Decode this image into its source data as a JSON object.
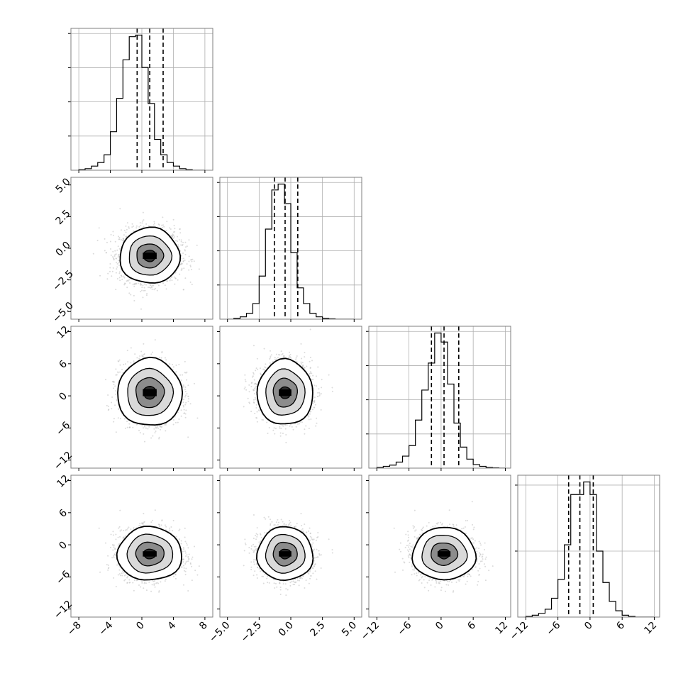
{
  "chart_data": {
    "type": "corner",
    "title": "",
    "parameters": 4,
    "colors": {
      "hist": "#000000",
      "points": "#bdbdbd",
      "grid": "#b0b0b0",
      "axes": "#7f7f7f"
    },
    "grid": true,
    "diagonal_histograms": [
      {
        "param": 0,
        "xlim": [
          -9,
          9
        ],
        "bin_edges": [
          -8,
          -7.2,
          -6.4,
          -5.6,
          -4.8,
          -4,
          -3.2,
          -2.4,
          -1.6,
          -0.8,
          0,
          0.8,
          1.6,
          2.4,
          3.2,
          4,
          4.8,
          5.6,
          6.4,
          7.2,
          8
        ],
        "counts": [
          1,
          3,
          8,
          15,
          30,
          75,
          140,
          215,
          260,
          263,
          200,
          130,
          60,
          30,
          15,
          8,
          3,
          1,
          0,
          0
        ],
        "quantiles": [
          -0.6,
          1.0,
          2.7
        ],
        "yticks": 4
      },
      {
        "param": 1,
        "xlim": [
          -5.6,
          5.6
        ],
        "bin_edges": [
          -5,
          -4.5,
          -4,
          -3.5,
          -3,
          -2.5,
          -2,
          -1.5,
          -1,
          -0.5,
          0,
          0.5,
          1,
          1.5,
          2,
          2.5,
          3,
          3.5,
          4,
          4.5,
          5
        ],
        "counts": [
          0,
          2,
          6,
          15,
          40,
          110,
          230,
          330,
          345,
          295,
          170,
          80,
          40,
          15,
          6,
          2,
          1,
          0,
          0,
          0
        ],
        "quantiles": [
          -1.3,
          -0.45,
          0.55
        ],
        "yticks": 4
      },
      {
        "param": 2,
        "xlim": [
          -13.5,
          13
        ],
        "bin_edges": [
          -12,
          -10.8,
          -9.6,
          -8.4,
          -7.2,
          -6,
          -4.8,
          -3.6,
          -2.4,
          -1.2,
          0,
          1.2,
          2.4,
          3.6,
          4.8,
          6,
          7.2,
          8.4,
          9.6,
          10.8,
          12
        ],
        "counts": [
          2,
          6,
          10,
          20,
          40,
          75,
          160,
          260,
          350,
          450,
          420,
          280,
          150,
          70,
          30,
          12,
          6,
          2,
          1,
          0
        ],
        "quantiles": [
          -1.8,
          0.55,
          3.3
        ],
        "yticks": 4
      },
      {
        "param": 3,
        "xlim": [
          -13.5,
          13
        ],
        "bin_edges": [
          -12,
          -10.8,
          -9.6,
          -8.4,
          -7.2,
          -6,
          -4.8,
          -3.6,
          -2.4,
          -1.2,
          0,
          1.2,
          2.4,
          3.6,
          4.8,
          6,
          7.2,
          8.4,
          9.6,
          10.8,
          12
        ],
        "counts": [
          2,
          6,
          12,
          25,
          60,
          120,
          230,
          390,
          390,
          430,
          390,
          210,
          110,
          50,
          20,
          6,
          2,
          0,
          0,
          0
        ],
        "quantiles": [
          -4.0,
          -1.9,
          0.6
        ],
        "yticks": 2
      }
    ],
    "joint_panels": [
      {
        "x_param": 0,
        "y_param": 1,
        "center": [
          1.0,
          -0.6
        ],
        "spread": [
          2.0,
          1.1
        ],
        "contour_half_widths": [
          [
            3.8,
            2.2
          ],
          [
            2.7,
            1.55
          ],
          [
            1.7,
            0.95
          ],
          [
            0.8,
            0.45
          ]
        ]
      },
      {
        "x_param": 0,
        "y_param": 2,
        "center": [
          1.0,
          0.6
        ],
        "spread": [
          2.0,
          2.9
        ],
        "contour_half_widths": [
          [
            4.1,
            6.3
          ],
          [
            2.9,
            4.4
          ],
          [
            1.8,
            2.8
          ],
          [
            0.8,
            1.2
          ]
        ]
      },
      {
        "x_param": 1,
        "y_param": 2,
        "center": [
          -0.45,
          0.6
        ],
        "spread": [
          1.1,
          2.9
        ],
        "contour_half_widths": [
          [
            2.2,
            6.1
          ],
          [
            1.55,
            4.3
          ],
          [
            0.95,
            2.7
          ],
          [
            0.45,
            1.1
          ]
        ]
      },
      {
        "x_param": 0,
        "y_param": 3,
        "center": [
          1.0,
          -1.7
        ],
        "spread": [
          2.0,
          2.4
        ],
        "contour_half_widths": [
          [
            4.1,
            5.0
          ],
          [
            2.9,
            3.6
          ],
          [
            1.8,
            2.2
          ],
          [
            0.8,
            0.9
          ]
        ]
      },
      {
        "x_param": 1,
        "y_param": 3,
        "center": [
          -0.45,
          -1.7
        ],
        "spread": [
          1.1,
          2.4
        ],
        "contour_half_widths": [
          [
            2.2,
            5.0
          ],
          [
            1.55,
            3.6
          ],
          [
            0.95,
            2.2
          ],
          [
            0.45,
            0.9
          ]
        ]
      },
      {
        "x_param": 2,
        "y_param": 3,
        "center": [
          0.55,
          -1.7
        ],
        "spread": [
          2.9,
          2.4
        ],
        "contour_half_widths": [
          [
            5.9,
            4.9
          ],
          [
            4.2,
            3.5
          ],
          [
            2.5,
            2.1
          ],
          [
            1.1,
            0.9
          ]
        ]
      }
    ],
    "axes": [
      {
        "param": 0,
        "lim": [
          -9,
          9
        ],
        "ticks": [
          -8,
          -4,
          0,
          4,
          8
        ],
        "tick_labels": [
          "−8",
          "−4",
          "0",
          "4",
          "8"
        ]
      },
      {
        "param": 1,
        "lim": [
          -5.6,
          5.6
        ],
        "ticks": [
          -5,
          -2.5,
          0,
          2.5,
          5
        ],
        "tick_labels": [
          "−5.0",
          "−2.5",
          "0.0",
          "2.5",
          "5.0"
        ]
      },
      {
        "param": 2,
        "lim": [
          -13.5,
          13
        ],
        "ticks": [
          -12,
          -6,
          0,
          6,
          12
        ],
        "tick_labels": [
          "−12",
          "−6",
          "0",
          "6",
          "12"
        ]
      },
      {
        "param": 3,
        "lim": [
          -13.5,
          13
        ],
        "ticks": [
          -12,
          -6,
          0,
          6,
          12
        ],
        "tick_labels": [
          "−12",
          "−6",
          "0",
          "6",
          "12"
        ]
      }
    ]
  }
}
